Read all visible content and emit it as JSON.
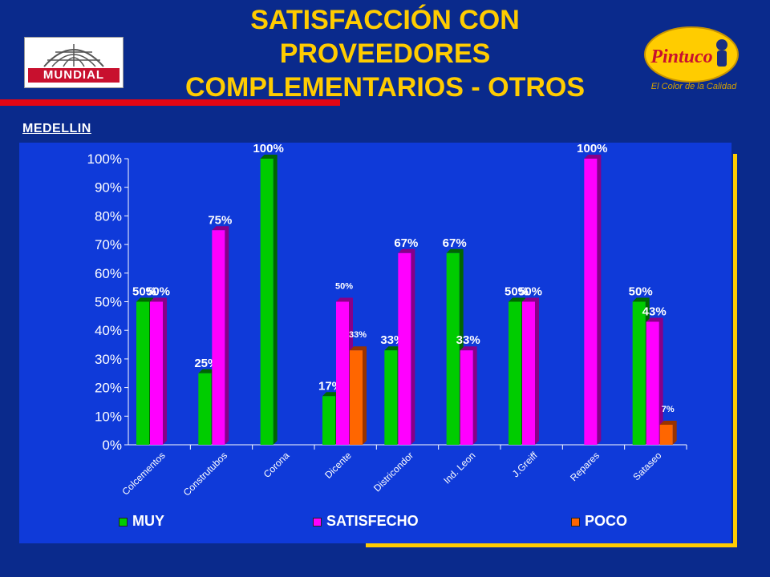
{
  "header": {
    "title_lines": [
      "SATISFACCIÓN CON",
      "PROVEEDORES",
      "COMPLEMENTARIOS - OTROS"
    ],
    "logo_left_text": "MUNDIAL",
    "logo_right_text": "Pintuco",
    "logo_right_tagline": "El Color de la Calidad",
    "section": "MEDELLIN"
  },
  "colors": {
    "muy": "#00cc00",
    "satisfecho": "#ff00ff",
    "poco": "#ff6600",
    "title": "#ffcc00"
  },
  "chart_data": {
    "type": "bar",
    "categories": [
      "Colcementos",
      "Construtubos",
      "Corona",
      "Dicente",
      "Districondor",
      "Ind. Leon",
      "J.Greiff",
      "Repares",
      "Sataseo"
    ],
    "series": [
      {
        "name": "MUY",
        "values": [
          50,
          25,
          100,
          17,
          33,
          67,
          50,
          0,
          50
        ],
        "labels": [
          "50%",
          "25%",
          "100%",
          "17%",
          "33%",
          "67%",
          "50%",
          "",
          "50%"
        ]
      },
      {
        "name": "SATISFECHO",
        "values": [
          50,
          75,
          0,
          50,
          67,
          33,
          50,
          100,
          43
        ],
        "labels": [
          "50%",
          "75%",
          "",
          "50%",
          "67%",
          "33%",
          "50%",
          "100%",
          "43%"
        ]
      },
      {
        "name": "POCO",
        "values": [
          0,
          0,
          0,
          33,
          0,
          0,
          0,
          0,
          7
        ],
        "labels": [
          "",
          "",
          "",
          "33%",
          "",
          "",
          "",
          "",
          "7%"
        ]
      }
    ],
    "yticks": [
      "0%",
      "10%",
      "20%",
      "30%",
      "40%",
      "50%",
      "60%",
      "70%",
      "80%",
      "90%",
      "100%"
    ],
    "ylim": [
      0,
      100
    ],
    "legend_position": "bottom"
  }
}
